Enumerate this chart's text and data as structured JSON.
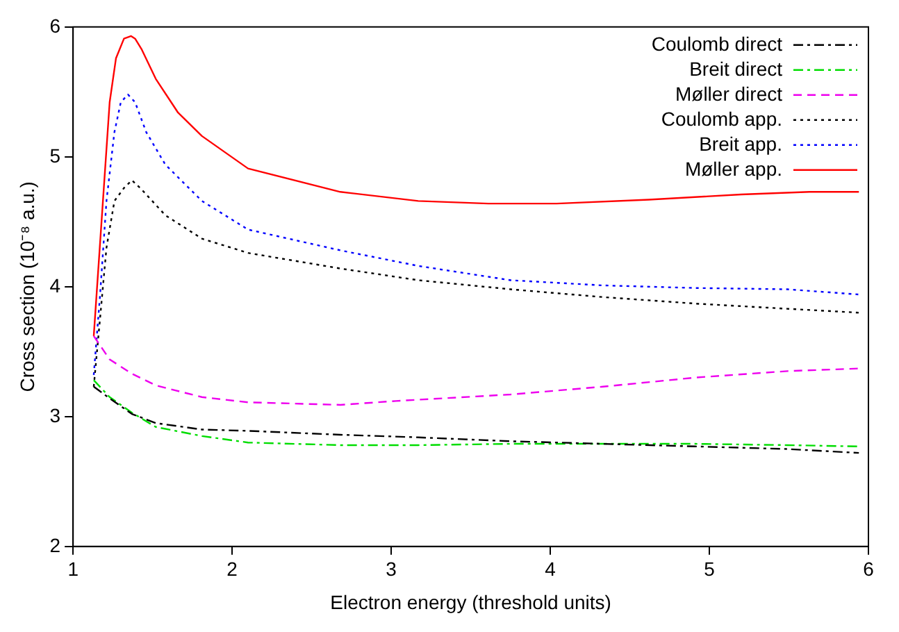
{
  "chart_data": {
    "type": "line",
    "xlabel": "Electron energy (threshold units)",
    "ylabel": "Cross section (10⁻⁸ a.u.)",
    "xlim": [
      1,
      6
    ],
    "ylim": [
      2,
      6
    ],
    "xticks": [
      1,
      2,
      3,
      4,
      5,
      6
    ],
    "yticks": [
      2,
      3,
      4,
      5,
      6
    ],
    "grid": false,
    "legend": "top right",
    "marker": "none",
    "series": [
      {
        "name": "Coulomb direct",
        "color": "#000000",
        "line_style": "dashdot",
        "x": [
          1.13,
          1.23,
          1.37,
          1.52,
          1.81,
          2.1,
          2.68,
          3.17,
          3.75,
          4.33,
          4.91,
          5.49,
          5.94
        ],
        "values": [
          3.23,
          3.14,
          3.02,
          2.95,
          2.9,
          2.89,
          2.86,
          2.84,
          2.81,
          2.79,
          2.77,
          2.75,
          2.72
        ]
      },
      {
        "name": "Breit direct",
        "color": "#00dd00",
        "line_style": "dashdot",
        "x": [
          1.13,
          1.23,
          1.37,
          1.52,
          1.81,
          2.1,
          2.68,
          3.17,
          3.75,
          4.33,
          4.91,
          5.49,
          5.94
        ],
        "values": [
          3.28,
          3.15,
          3.03,
          2.92,
          2.85,
          2.8,
          2.78,
          2.78,
          2.79,
          2.79,
          2.79,
          2.78,
          2.77
        ]
      },
      {
        "name": "Møller direct",
        "color": "#ee00ee",
        "line_style": "dashed",
        "x": [
          1.13,
          1.23,
          1.37,
          1.52,
          1.81,
          2.1,
          2.68,
          3.03,
          3.75,
          4.33,
          4.91,
          5.49,
          5.94
        ],
        "values": [
          3.62,
          3.44,
          3.33,
          3.24,
          3.15,
          3.11,
          3.09,
          3.12,
          3.17,
          3.23,
          3.3,
          3.35,
          3.37
        ]
      },
      {
        "name": "Coulomb app.",
        "color": "#000000",
        "line_style": "dotted",
        "x": [
          1.13,
          1.17,
          1.21,
          1.26,
          1.32,
          1.37,
          1.43,
          1.58,
          1.81,
          2.1,
          2.68,
          3.17,
          3.75,
          4.33,
          4.91,
          5.49,
          5.94
        ],
        "values": [
          3.23,
          3.76,
          4.3,
          4.66,
          4.76,
          4.82,
          4.75,
          4.55,
          4.37,
          4.26,
          4.14,
          4.05,
          3.98,
          3.92,
          3.87,
          3.83,
          3.8
        ]
      },
      {
        "name": "Breit app.",
        "color": "#0000ff",
        "line_style": "dotted",
        "x": [
          1.13,
          1.17,
          1.21,
          1.26,
          1.3,
          1.345,
          1.39,
          1.46,
          1.58,
          1.81,
          2.1,
          2.68,
          3.17,
          3.75,
          4.33,
          4.91,
          5.49,
          5.94
        ],
        "values": [
          3.32,
          3.94,
          4.66,
          5.19,
          5.42,
          5.48,
          5.42,
          5.19,
          4.94,
          4.66,
          4.44,
          4.28,
          4.16,
          4.05,
          4.01,
          3.99,
          3.98,
          3.94
        ]
      },
      {
        "name": "Møller app.",
        "color": "#ff0000",
        "line_style": "solid",
        "x": [
          1.13,
          1.23,
          1.27,
          1.32,
          1.365,
          1.39,
          1.43,
          1.52,
          1.66,
          1.81,
          2.1,
          2.68,
          3.17,
          3.61,
          4.04,
          4.62,
          5.2,
          5.63,
          5.94
        ],
        "values": [
          3.62,
          5.42,
          5.76,
          5.91,
          5.93,
          5.91,
          5.83,
          5.6,
          5.34,
          5.16,
          4.91,
          4.73,
          4.66,
          4.64,
          4.64,
          4.67,
          4.71,
          4.73,
          4.73
        ]
      }
    ]
  }
}
